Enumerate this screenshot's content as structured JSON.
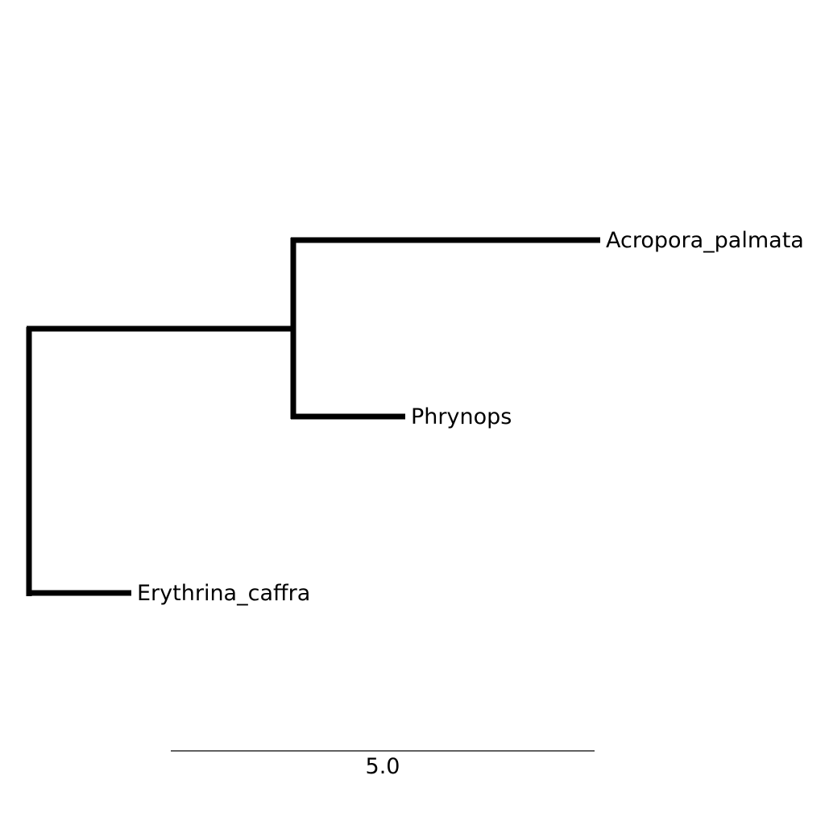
{
  "tree": {
    "taxa": [
      {
        "name": "Acropora_palmata"
      },
      {
        "name": "Phrynops"
      },
      {
        "name": "Erythrina_caffra"
      }
    ],
    "scale_bar": {
      "label": "5.0"
    },
    "colors": {
      "branch": "#000000",
      "background": "#ffffff"
    }
  }
}
